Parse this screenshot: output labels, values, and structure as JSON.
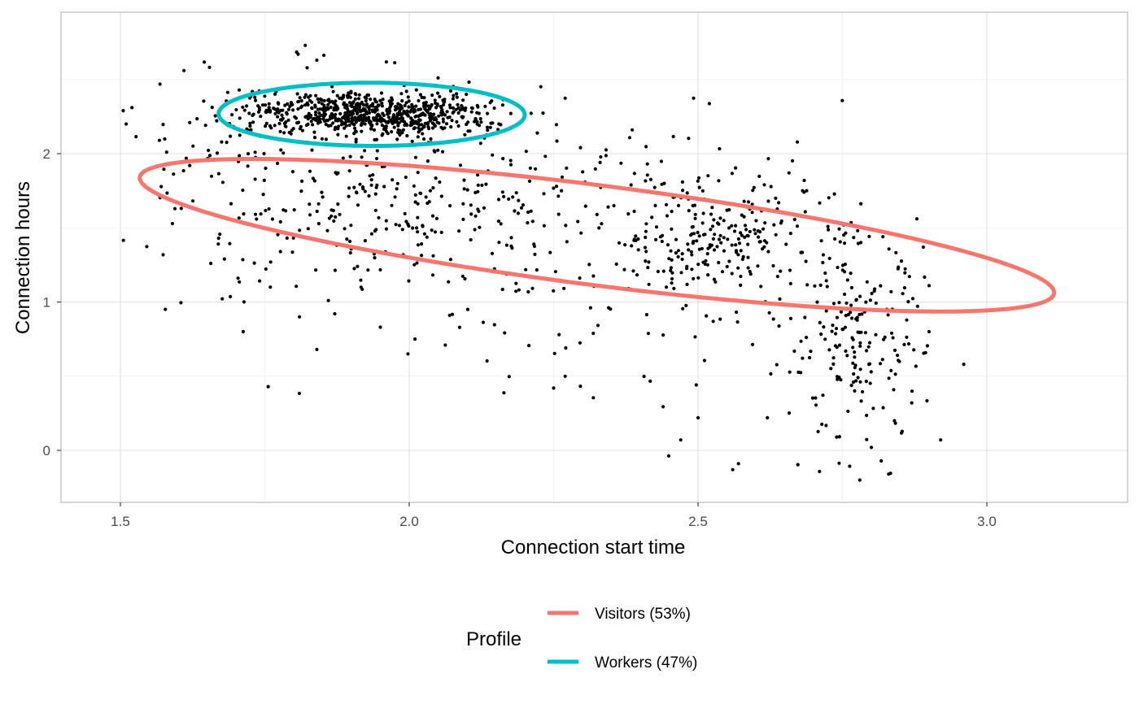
{
  "chart_data": {
    "type": "scatter",
    "title": "",
    "xlabel": "Connection start time",
    "ylabel": "Connection hours",
    "xlim": [
      1.4,
      3.23
    ],
    "ylim": [
      -0.35,
      2.95
    ],
    "x_ticks": [
      {
        "value": 1.5,
        "label": "1.5"
      },
      {
        "value": 2.0,
        "label": "2.0"
      },
      {
        "value": 2.5,
        "label": "2.5"
      },
      {
        "value": 3.0,
        "label": "3.0"
      }
    ],
    "y_ticks": [
      {
        "value": 0,
        "label": "0"
      },
      {
        "value": 1,
        "label": "1"
      },
      {
        "value": 2,
        "label": "2"
      }
    ],
    "grid": true,
    "legend": {
      "title": "Profile",
      "placement": "bottom",
      "entries": [
        {
          "label": "Visitors (53%)",
          "color": "#F8766D"
        },
        {
          "label": "Workers (47%)",
          "color": "#00BFC4"
        }
      ]
    },
    "ellipses": [
      {
        "name": "Visitors (53%)",
        "color": "#F8766D",
        "center_x": 2.325,
        "center_y": 1.45,
        "semi_major": 0.895,
        "semi_minor": 0.3,
        "angle_deg": -29.7
      },
      {
        "name": "Workers (47%)",
        "color": "#00BFC4",
        "center_x": 1.935,
        "center_y": 2.265,
        "semi_major": 0.265,
        "semi_minor": 0.213,
        "angle_deg": -2.0
      }
    ],
    "clusters": [
      {
        "cx": 1.93,
        "cy": 2.27,
        "sx": 0.1,
        "sy": 0.07,
        "n": 700
      },
      {
        "cx": 1.95,
        "cy": 1.7,
        "sx": 0.17,
        "sy": 0.35,
        "n": 300
      },
      {
        "cx": 2.52,
        "cy": 1.45,
        "sx": 0.09,
        "sy": 0.22,
        "n": 230
      },
      {
        "cx": 2.77,
        "cy": 0.75,
        "sx": 0.06,
        "sy": 0.35,
        "n": 200
      },
      {
        "cx": 2.35,
        "cy": 1.4,
        "sx": 0.25,
        "sy": 0.55,
        "n": 150
      },
      {
        "cx": 1.7,
        "cy": 2.15,
        "sx": 0.08,
        "sy": 0.3,
        "n": 60
      }
    ],
    "points": [
      [
        1.52,
        2.31
      ],
      [
        1.51,
        2.2
      ],
      [
        1.58,
        2.01
      ],
      [
        1.61,
        2.56
      ],
      [
        1.62,
        1.92
      ],
      [
        1.67,
        1.43
      ],
      [
        1.68,
        1.29
      ],
      [
        1.84,
        0.68
      ],
      [
        1.81,
        0.9
      ],
      [
        1.86,
        1.01
      ],
      [
        1.95,
        0.83
      ],
      [
        2.01,
        0.75
      ],
      [
        2.07,
        0.91
      ],
      [
        2.25,
        0.42
      ],
      [
        2.27,
        0.5
      ],
      [
        2.47,
        0.07
      ],
      [
        2.56,
        -0.13
      ],
      [
        2.57,
        -0.09
      ],
      [
        2.5,
        0.22
      ],
      [
        2.78,
        -0.2
      ],
      [
        2.83,
        -0.16
      ],
      [
        2.8,
        0.02
      ],
      [
        2.92,
        0.07
      ],
      [
        2.96,
        0.58
      ],
      [
        2.9,
        0.8
      ],
      [
        2.89,
        1.37
      ],
      [
        2.9,
        1.11
      ],
      [
        2.82,
        1.44
      ],
      [
        1.82,
        2.73
      ],
      [
        1.84,
        2.63
      ],
      [
        2.84,
        0.2
      ],
      [
        2.87,
        0.32
      ],
      [
        2.74,
        0.09
      ],
      [
        2.62,
        0.22
      ],
      [
        2.05,
        2.51
      ]
    ]
  }
}
